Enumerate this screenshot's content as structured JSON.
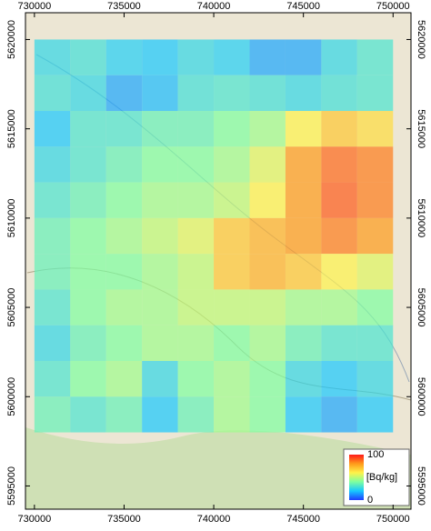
{
  "chart_data": {
    "type": "heatmap",
    "x": [
      731000,
      733000,
      735000,
      737000,
      739000,
      741000,
      743000,
      745000,
      747000,
      749000
    ],
    "y": [
      5619000,
      5617000,
      5615000,
      5613000,
      5611000,
      5609000,
      5607000,
      5605000,
      5603000,
      5601000,
      5599000
    ],
    "values": [
      [
        25,
        28,
        22,
        20,
        25,
        22,
        15,
        15,
        25,
        30
      ],
      [
        28,
        25,
        15,
        18,
        28,
        30,
        28,
        25,
        28,
        30
      ],
      [
        20,
        30,
        30,
        35,
        35,
        40,
        45,
        60,
        70,
        65
      ],
      [
        25,
        30,
        35,
        40,
        40,
        45,
        55,
        80,
        88,
        85
      ],
      [
        30,
        35,
        40,
        45,
        45,
        50,
        60,
        80,
        90,
        85
      ],
      [
        35,
        40,
        45,
        50,
        55,
        70,
        75,
        80,
        85,
        80
      ],
      [
        35,
        40,
        40,
        45,
        50,
        70,
        75,
        70,
        60,
        55
      ],
      [
        30,
        40,
        45,
        45,
        50,
        50,
        50,
        45,
        45,
        40
      ],
      [
        25,
        35,
        40,
        45,
        45,
        40,
        45,
        35,
        30,
        30
      ],
      [
        30,
        40,
        45,
        25,
        40,
        45,
        40,
        25,
        20,
        25
      ],
      [
        35,
        30,
        35,
        20,
        35,
        45,
        40,
        20,
        15,
        20
      ]
    ],
    "xlim": [
      729500,
      751000
    ],
    "ylim": [
      5593700,
      5621500
    ],
    "xticks": [
      730000,
      735000,
      740000,
      745000,
      750000
    ],
    "yticks": [
      5595000,
      5600000,
      5605000,
      5610000,
      5615000,
      5620000
    ],
    "colormap": [
      "#1f3cff",
      "#17c8ff",
      "#7dffa0",
      "#fff24a",
      "#ff9a1a",
      "#ff1a1a"
    ],
    "colorbar": {
      "label": "[Bq/kg]",
      "range": [
        0,
        100
      ],
      "ticks": [
        0,
        100
      ]
    }
  }
}
